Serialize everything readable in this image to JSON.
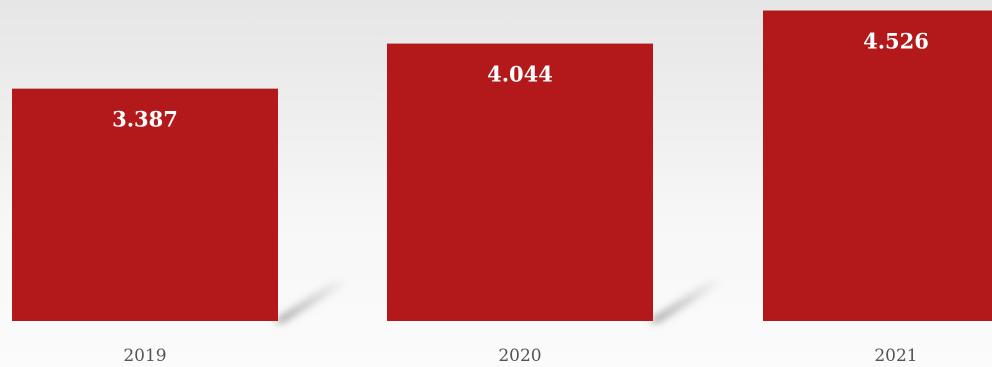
{
  "chart_data": {
    "type": "bar",
    "categories": [
      "2019",
      "2020",
      "2021"
    ],
    "values": [
      3.387,
      4.044,
      4.526
    ],
    "value_labels": [
      "3.387",
      "4.044",
      "4.526"
    ],
    "title": "",
    "xlabel": "",
    "ylabel": "",
    "grid": false,
    "legend": "none",
    "colors": {
      "bar": "#b3191a",
      "shadow": "#8a8a8a",
      "label": "#ffffff",
      "tick": "#555555"
    }
  }
}
